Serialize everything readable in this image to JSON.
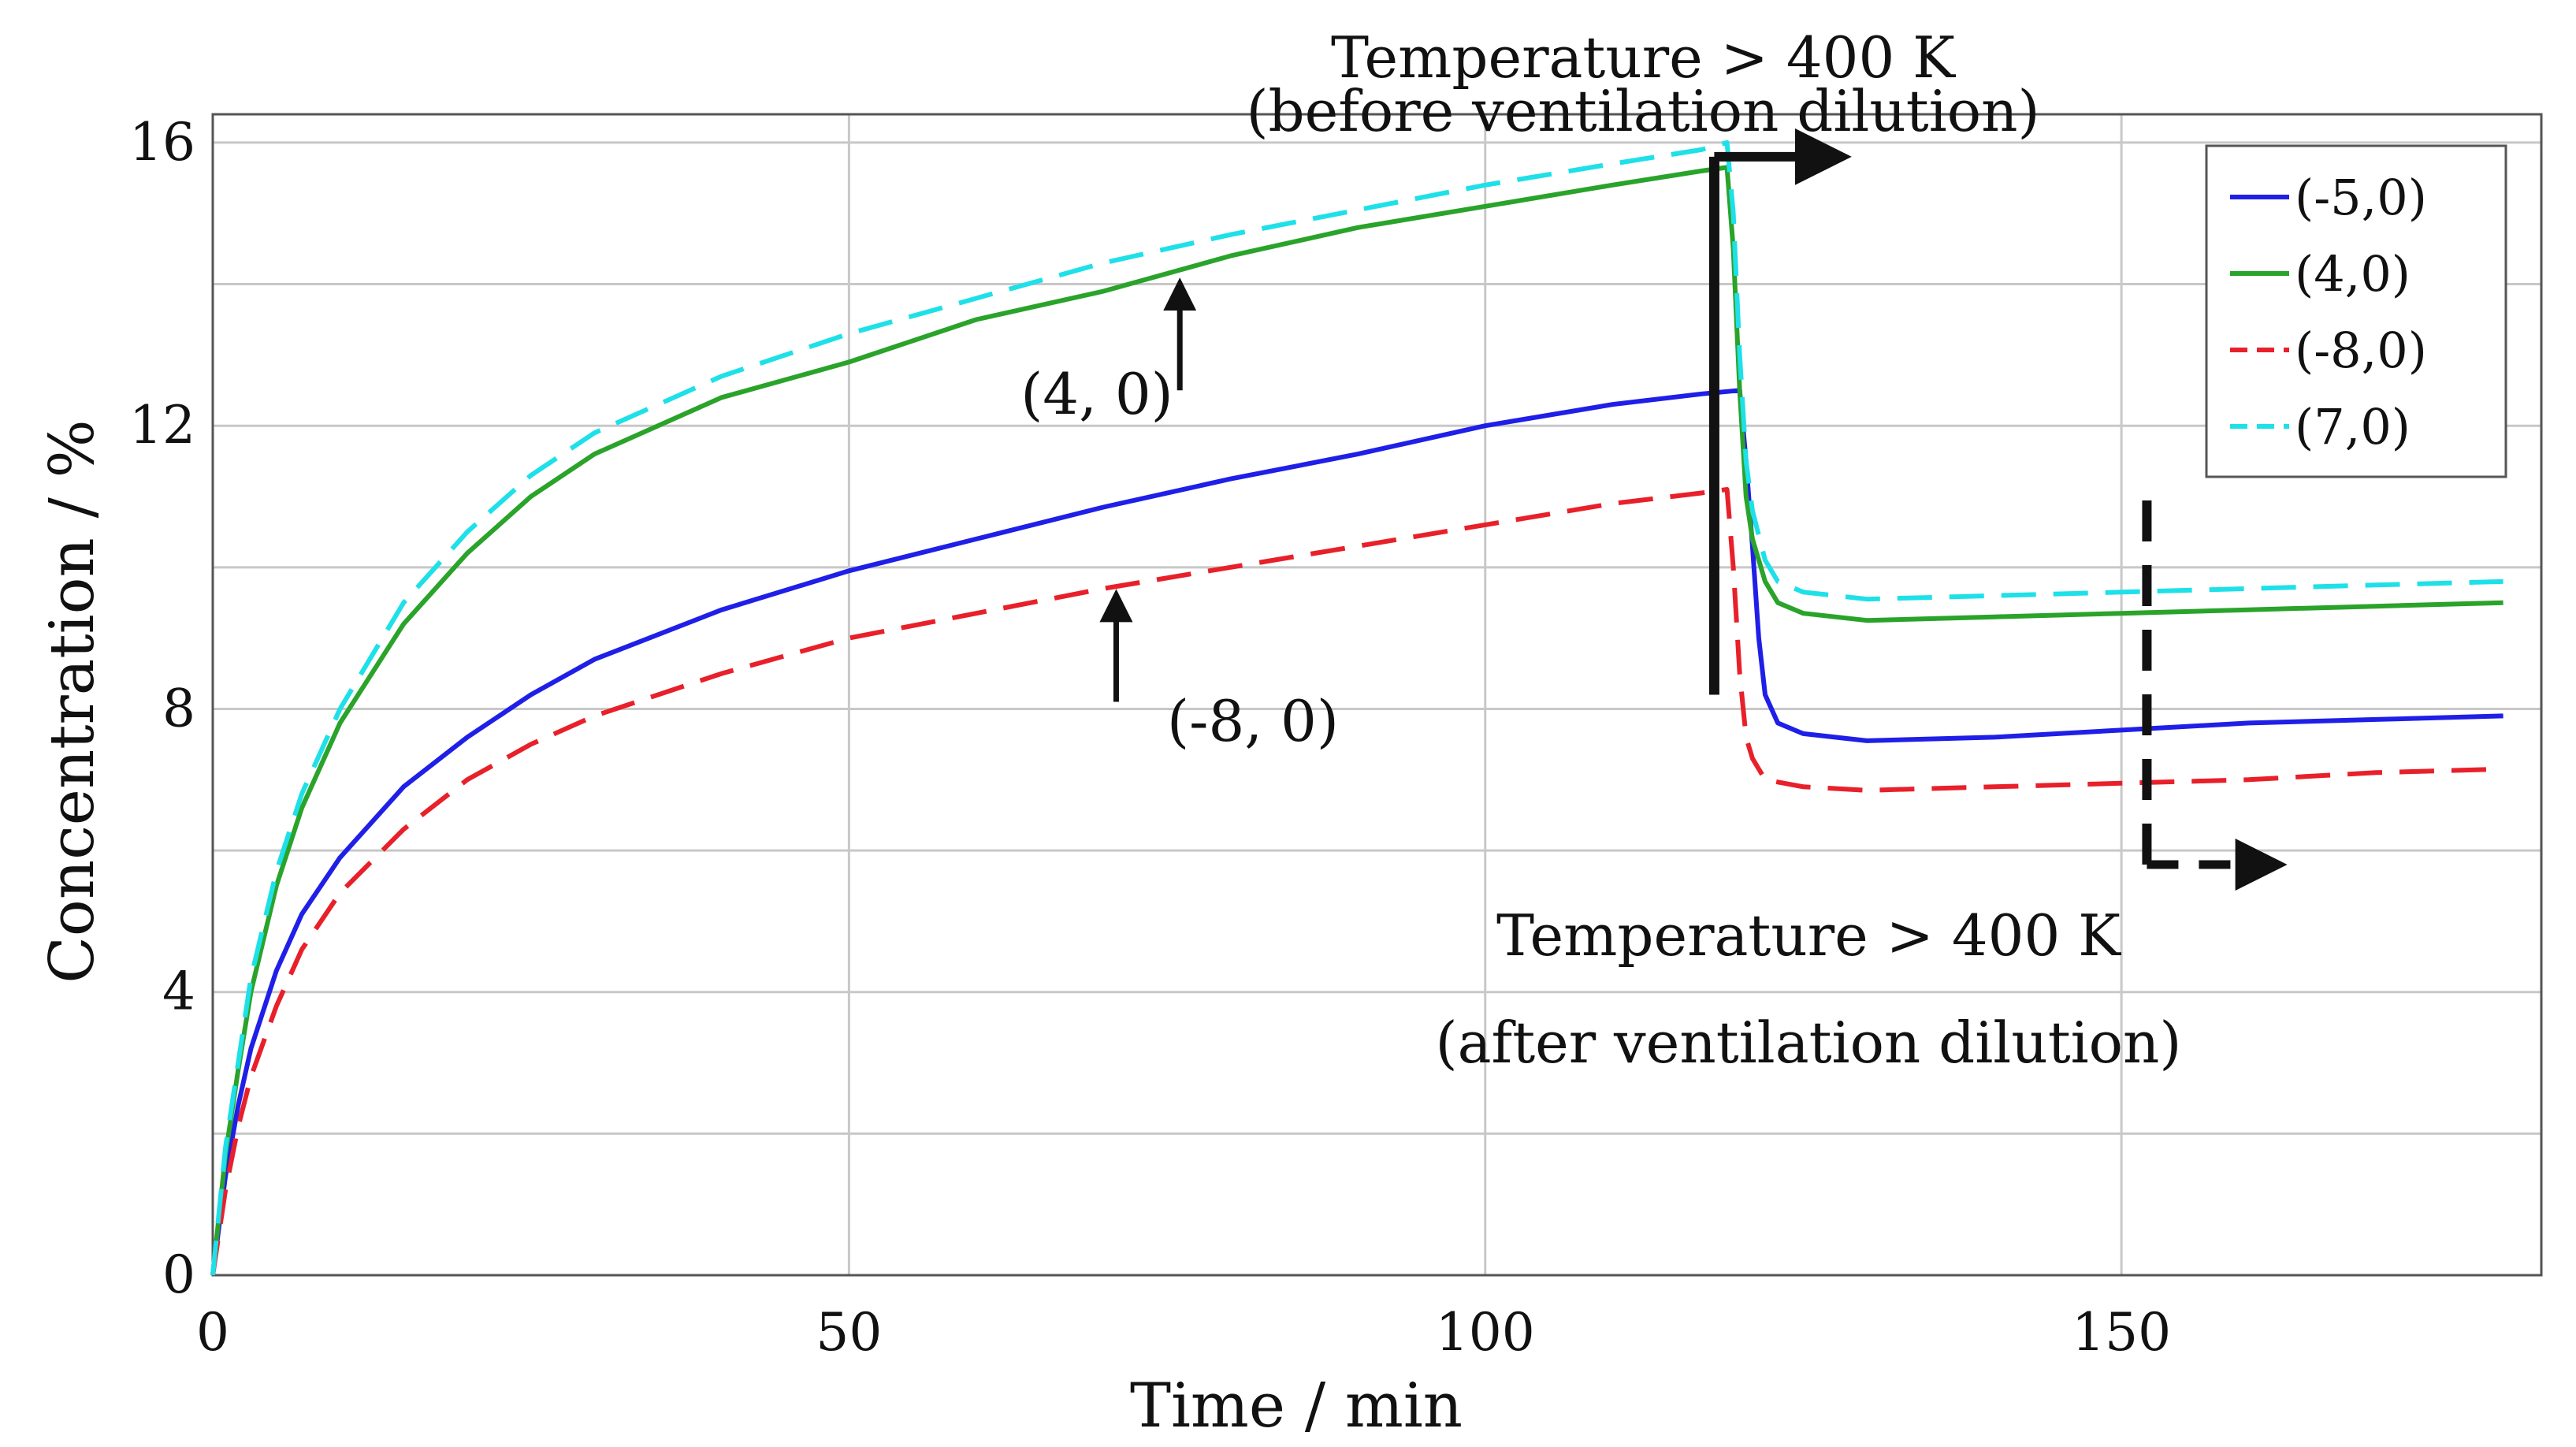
{
  "chart_data": {
    "type": "line",
    "title": "",
    "xlabel": "Time / min",
    "ylabel": "Concentration  / %",
    "xlim": [
      0,
      183
    ],
    "ylim": [
      0,
      16.4
    ],
    "x_ticks": [
      0,
      50,
      100,
      150
    ],
    "y_ticks": [
      0,
      4,
      8,
      12,
      16
    ],
    "x_tick_labels": [
      "0",
      "50",
      "100",
      "150"
    ],
    "y_tick_labels": [
      "0",
      "4",
      "8",
      "12",
      "16"
    ],
    "grid": true,
    "legend_position": "top-right",
    "series": [
      {
        "name": "(-5,0)",
        "color": "#1f1fe8",
        "dash": "solid",
        "points": [
          [
            0,
            0
          ],
          [
            1,
            1.4
          ],
          [
            2,
            2.4
          ],
          [
            3,
            3.2
          ],
          [
            5,
            4.3
          ],
          [
            7,
            5.1
          ],
          [
            10,
            5.9
          ],
          [
            15,
            6.9
          ],
          [
            20,
            7.6
          ],
          [
            25,
            8.2
          ],
          [
            30,
            8.7
          ],
          [
            40,
            9.4
          ],
          [
            50,
            9.95
          ],
          [
            60,
            10.4
          ],
          [
            70,
            10.85
          ],
          [
            80,
            11.25
          ],
          [
            90,
            11.6
          ],
          [
            100,
            12.0
          ],
          [
            110,
            12.3
          ],
          [
            117,
            12.45
          ],
          [
            120,
            12.5
          ],
          [
            120.5,
            11.5
          ],
          [
            121,
            10.3
          ],
          [
            121.5,
            9.0
          ],
          [
            122,
            8.2
          ],
          [
            123,
            7.8
          ],
          [
            125,
            7.65
          ],
          [
            130,
            7.55
          ],
          [
            140,
            7.6
          ],
          [
            150,
            7.7
          ],
          [
            160,
            7.8
          ],
          [
            170,
            7.85
          ],
          [
            180,
            7.9
          ]
        ]
      },
      {
        "name": "(4,0)",
        "color": "#2aa32a",
        "dash": "solid",
        "points": [
          [
            0,
            0
          ],
          [
            1,
            1.7
          ],
          [
            2,
            2.9
          ],
          [
            3,
            4.0
          ],
          [
            5,
            5.5
          ],
          [
            7,
            6.6
          ],
          [
            10,
            7.8
          ],
          [
            15,
            9.2
          ],
          [
            20,
            10.2
          ],
          [
            25,
            11.0
          ],
          [
            30,
            11.6
          ],
          [
            40,
            12.4
          ],
          [
            50,
            12.9
          ],
          [
            60,
            13.5
          ],
          [
            70,
            13.9
          ],
          [
            80,
            14.4
          ],
          [
            90,
            14.8
          ],
          [
            100,
            15.1
          ],
          [
            110,
            15.4
          ],
          [
            117,
            15.6
          ],
          [
            119,
            15.65
          ],
          [
            119.5,
            14.5
          ],
          [
            120,
            12.5
          ],
          [
            120.5,
            11.0
          ],
          [
            121,
            10.4
          ],
          [
            122,
            9.8
          ],
          [
            123,
            9.5
          ],
          [
            125,
            9.35
          ],
          [
            130,
            9.25
          ],
          [
            140,
            9.3
          ],
          [
            150,
            9.35
          ],
          [
            160,
            9.4
          ],
          [
            170,
            9.45
          ],
          [
            180,
            9.5
          ]
        ]
      },
      {
        "name": "(-8,0)",
        "color": "#e8202a",
        "dash": "dashed",
        "points": [
          [
            0,
            0
          ],
          [
            1,
            1.2
          ],
          [
            2,
            2.1
          ],
          [
            3,
            2.8
          ],
          [
            5,
            3.8
          ],
          [
            7,
            4.6
          ],
          [
            10,
            5.4
          ],
          [
            15,
            6.3
          ],
          [
            20,
            7.0
          ],
          [
            25,
            7.5
          ],
          [
            30,
            7.9
          ],
          [
            40,
            8.5
          ],
          [
            50,
            9.0
          ],
          [
            60,
            9.35
          ],
          [
            70,
            9.7
          ],
          [
            80,
            10.0
          ],
          [
            90,
            10.3
          ],
          [
            100,
            10.6
          ],
          [
            110,
            10.9
          ],
          [
            117,
            11.05
          ],
          [
            119,
            11.1
          ],
          [
            119.5,
            10.0
          ],
          [
            120,
            8.5
          ],
          [
            120.5,
            7.6
          ],
          [
            121,
            7.3
          ],
          [
            122,
            7.0
          ],
          [
            125,
            6.9
          ],
          [
            130,
            6.85
          ],
          [
            140,
            6.9
          ],
          [
            150,
            6.95
          ],
          [
            160,
            7.0
          ],
          [
            170,
            7.1
          ],
          [
            180,
            7.15
          ]
        ]
      },
      {
        "name": "(7,0)",
        "color": "#1ee0e8",
        "dash": "dashed",
        "points": [
          [
            0,
            0
          ],
          [
            1,
            1.8
          ],
          [
            2,
            3.0
          ],
          [
            3,
            4.2
          ],
          [
            5,
            5.7
          ],
          [
            7,
            6.8
          ],
          [
            10,
            8.0
          ],
          [
            15,
            9.5
          ],
          [
            20,
            10.5
          ],
          [
            25,
            11.3
          ],
          [
            30,
            11.9
          ],
          [
            40,
            12.7
          ],
          [
            50,
            13.3
          ],
          [
            60,
            13.8
          ],
          [
            70,
            14.3
          ],
          [
            80,
            14.7
          ],
          [
            90,
            15.05
          ],
          [
            100,
            15.4
          ],
          [
            110,
            15.7
          ],
          [
            117,
            15.9
          ],
          [
            119,
            16.0
          ],
          [
            119.5,
            15.0
          ],
          [
            120,
            13.0
          ],
          [
            120.5,
            11.5
          ],
          [
            121,
            10.8
          ],
          [
            122,
            10.1
          ],
          [
            123,
            9.8
          ],
          [
            125,
            9.65
          ],
          [
            130,
            9.55
          ],
          [
            140,
            9.6
          ],
          [
            150,
            9.65
          ],
          [
            160,
            9.7
          ],
          [
            170,
            9.75
          ],
          [
            180,
            9.8
          ]
        ]
      }
    ],
    "annotations": {
      "top_line1": "Temperature > 400 K",
      "top_line2": "(before ventilation dilution)",
      "bottom_line1": "Temperature > 400 K",
      "bottom_line2": "(after ventilation dilution)",
      "label_green": "(4, 0)",
      "label_red": "(-8, 0)"
    },
    "markers": {
      "solid_vertical_x": 118,
      "solid_vertical_y": [
        8.2,
        15.8
      ],
      "dashed_vertical_x": 152,
      "dashed_vertical_y": [
        5.8,
        11.2
      ],
      "arrow_green_x": 76,
      "arrow_green_y": [
        12.5,
        14.0
      ],
      "arrow_red_x": 71,
      "arrow_red_y": [
        8.1,
        9.6
      ]
    }
  }
}
